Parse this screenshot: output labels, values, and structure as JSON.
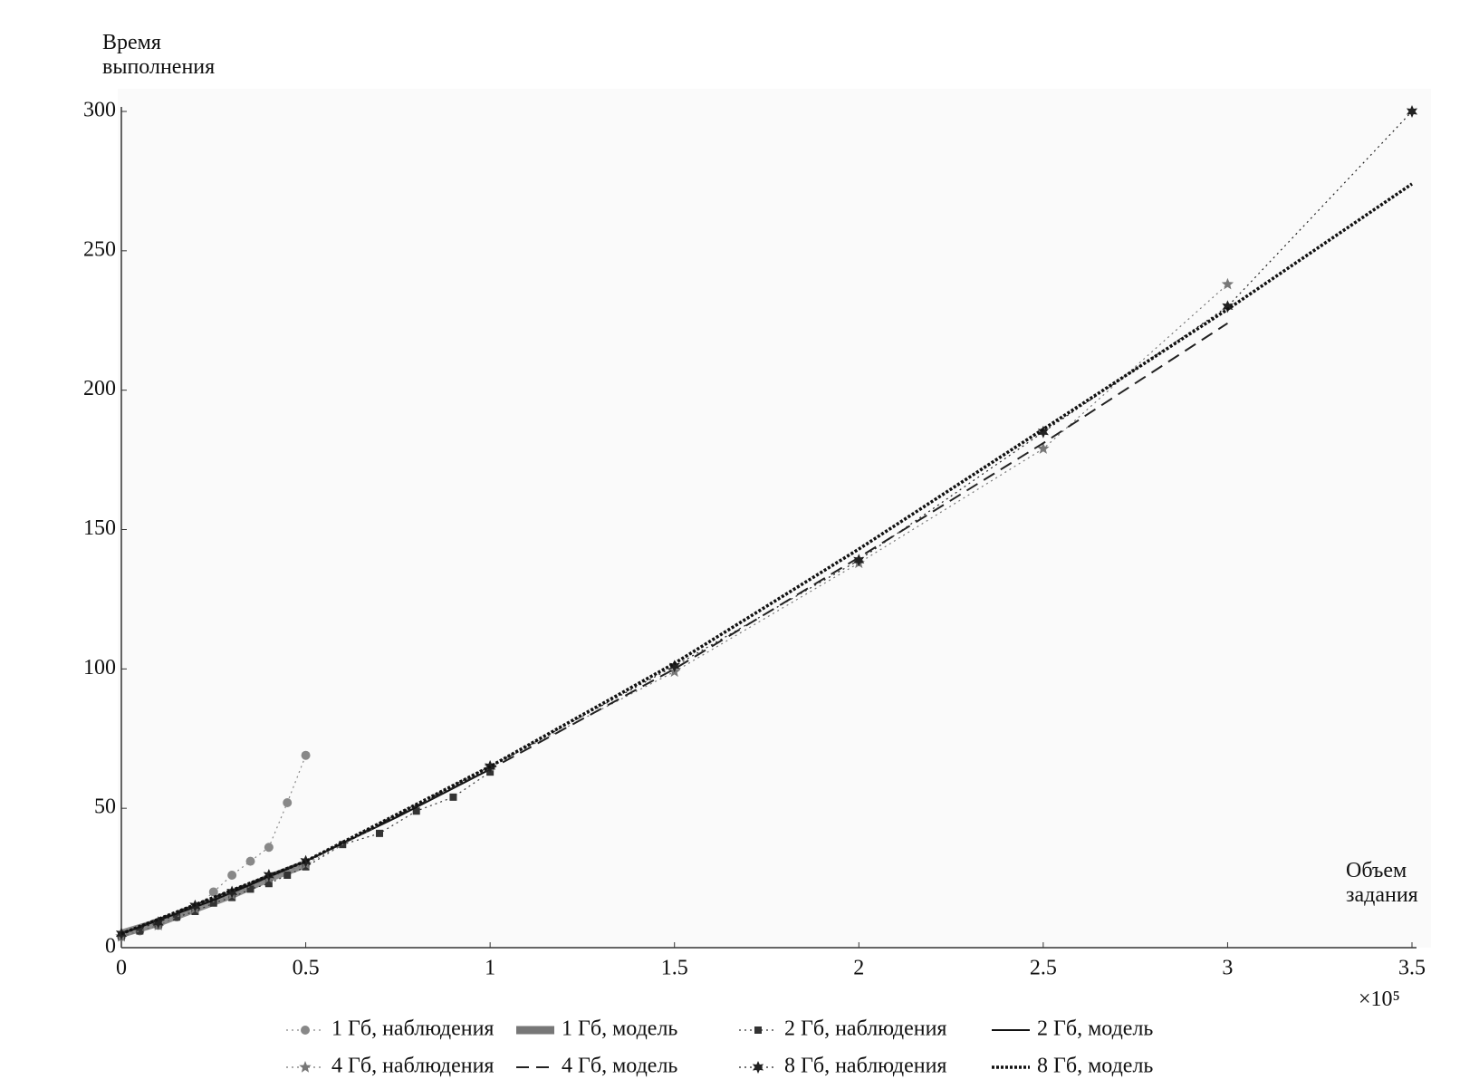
{
  "chart_data": {
    "type": "line",
    "ylabel": "Время выполнения",
    "xlabel": "Объем задания",
    "x_multiplier": "×10⁵",
    "xlim": [
      0,
      3.5
    ],
    "xticks": [
      0,
      0.5,
      1,
      1.5,
      2,
      2.5,
      3,
      3.5
    ],
    "ylim": [
      0,
      300
    ],
    "yticks": [
      0,
      50,
      100,
      150,
      200,
      250,
      300
    ],
    "series": [
      {
        "name": "1 Гб, наблюдения",
        "color": "#888888",
        "marker": "circle",
        "line_style": "dotted",
        "line_width": 1.2,
        "x": [
          0,
          0.05,
          0.1,
          0.15,
          0.2,
          0.25,
          0.3,
          0.35,
          0.4,
          0.45,
          0.5
        ],
        "values": [
          4,
          6,
          8,
          11,
          14,
          20,
          26,
          31,
          36,
          52,
          69
        ]
      },
      {
        "name": "1 Гб, модель",
        "color": "#777777",
        "marker": "none",
        "line_style": "solid",
        "line_width": 9,
        "x": [
          0,
          0.1,
          0.2,
          0.3,
          0.4,
          0.5
        ],
        "values": [
          5,
          9,
          14,
          19,
          25,
          30
        ]
      },
      {
        "name": "2 Гб, наблюдения",
        "color": "#333333",
        "marker": "square",
        "line_style": "dotted",
        "line_width": 1.2,
        "x": [
          0,
          0.05,
          0.1,
          0.15,
          0.2,
          0.25,
          0.3,
          0.35,
          0.4,
          0.45,
          0.5,
          0.6,
          0.7,
          0.8,
          0.9,
          1
        ],
        "values": [
          4,
          6,
          8,
          11,
          13,
          16,
          18,
          21,
          23,
          26,
          29,
          37,
          41,
          49,
          54,
          63
        ]
      },
      {
        "name": "2 Гб, модель",
        "color": "#111111",
        "marker": "none",
        "line_style": "solid",
        "line_width": 2,
        "x": [
          0,
          0.25,
          0.5,
          0.75,
          1
        ],
        "values": [
          5,
          17,
          31,
          47,
          64
        ]
      },
      {
        "name": "4 Гб, наблюдения",
        "color": "#777777",
        "marker": "star",
        "line_style": "dotted",
        "line_width": 1.2,
        "x": [
          0,
          0.1,
          0.2,
          0.3,
          0.4,
          0.5,
          1,
          1.5,
          2,
          2.5,
          3
        ],
        "values": [
          4,
          8,
          14,
          19,
          25,
          30,
          65,
          99,
          138,
          179,
          238
        ]
      },
      {
        "name": "4 Гб, модель",
        "color": "#222222",
        "marker": "none",
        "line_style": "dashed",
        "line_width": 2,
        "x": [
          0,
          0.5,
          1,
          1.5,
          2,
          2.5,
          3
        ],
        "values": [
          5,
          31,
          64,
          100,
          140,
          181,
          224
        ]
      },
      {
        "name": "8 Гб, наблюдения",
        "color": "#222222",
        "marker": "star6",
        "line_style": "dotted",
        "line_width": 1.2,
        "x": [
          0,
          0.1,
          0.2,
          0.3,
          0.4,
          0.5,
          1,
          1.5,
          2,
          2.5,
          3,
          3.5
        ],
        "values": [
          5,
          9,
          15,
          20,
          26,
          31,
          65,
          101,
          139,
          185,
          230,
          300
        ]
      },
      {
        "name": "8 Гб, модель",
        "color": "#111111",
        "marker": "none",
        "line_style": "dense-dotted",
        "line_width": 3.5,
        "x": [
          0,
          0.5,
          1,
          1.5,
          2,
          2.5,
          3,
          3.5
        ],
        "values": [
          5,
          31,
          65,
          102,
          143,
          186,
          229,
          274
        ]
      }
    ]
  }
}
